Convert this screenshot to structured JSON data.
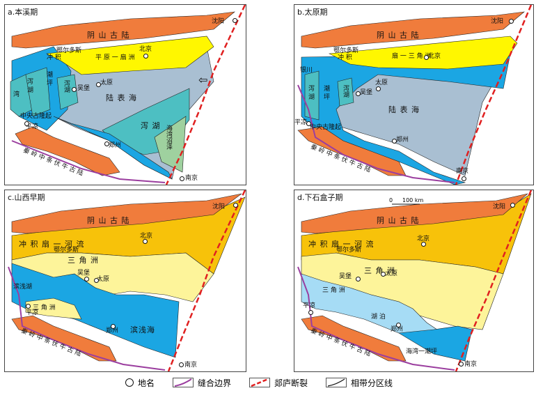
{
  "colors": {
    "orange": "#f07c3c",
    "yellow": "#fff700",
    "amber": "#f7c20a",
    "lightyellow": "#fdf49a",
    "blue": "#1ba6e3",
    "lightblue": "#a6dcf5",
    "teal": "#4dbfc2",
    "grey": "#a9bfd2",
    "green": "#9fd19f",
    "purple": "#9b3e9f",
    "red": "#e02020"
  },
  "panels": [
    {
      "title": "a.本溪期",
      "labels": {
        "yinshan": "阴 山 古 陆",
        "plain": "平 原 一 扇 洲",
        "lagoon": "湖",
        "bay": "湾",
        "chongji": "冲 积",
        "chaoping": "潮 坪",
        "xiehu": "泻 湖",
        "xiehu2": "泻湖",
        "luhai": "陆 表 海",
        "xiehu3": "泻 湖",
        "haiwan": "海湾沼泽",
        "zhongyang": "中央古隆起",
        "qinling": "秦 岭 中 条 伏 牛 古 陆"
      },
      "places": [
        "沈阳",
        "北京",
        "鄂尔多斯",
        "太原",
        "吴堡",
        "平凉",
        "郑州",
        "南京"
      ],
      "arrow_icon": "hollow-arrow-icon"
    },
    {
      "title": "b.太原期",
      "labels": {
        "yinshan": "阴 山 古 陆",
        "fan": "扇 一 三 角 洲",
        "chongji": "冲 积",
        "yinchuan": "银川",
        "chaoping": "潮 坪",
        "xiehu": "泻 湖",
        "xiehu2": "泻湖",
        "luhai": "陆 表 海",
        "zhongyang": "中央古隆起",
        "qinling": "秦 岭 中 条 伏 牛 古 陆"
      },
      "places": [
        "沈阳",
        "北京",
        "鄂尔多斯",
        "太原",
        "吴堡",
        "平凉",
        "郑州",
        "南京"
      ]
    },
    {
      "title": "c.山西早期",
      "labels": {
        "yinshan": "阴 山 古 陆",
        "fan": "冲 积 扇 一 河 流",
        "delta": "三 角 洲",
        "delta2": "三 角 洲",
        "binqian": "滨浅湖",
        "binqianhai": "滨浅海",
        "qinling": "秦 岭 中 条 伏 牛 古 陆"
      },
      "places": [
        "沈阳",
        "北京",
        "鄂尔多斯",
        "太原",
        "吴堡",
        "平凉",
        "郑州",
        "南京"
      ]
    },
    {
      "title": "d.下石盒子期",
      "labels": {
        "yinshan": "阴 山 古 陆",
        "fan": "冲 积 扇 一 河 流",
        "delta": "三 角 洲",
        "lake": "湖 泊",
        "delta2": "三 角 洲",
        "tidal": "海湾一潮坪",
        "qinling": "秦 岭 中 条 伏 牛 古 陆"
      },
      "places": [
        "沈阳",
        "北京",
        "鄂尔多斯",
        "太原",
        "吴堡",
        "平凉",
        "郑州",
        "南京"
      ],
      "scale": {
        "zero": "0",
        "length": "100 km"
      }
    }
  ],
  "legend": [
    {
      "icon": "place-circle-icon",
      "label": "地名"
    },
    {
      "icon": "suture-boundary-icon",
      "label": "缝合边界"
    },
    {
      "icon": "fault-icon",
      "label": "郯庐断裂"
    },
    {
      "icon": "facies-line-icon",
      "label": "相带分区线"
    }
  ]
}
